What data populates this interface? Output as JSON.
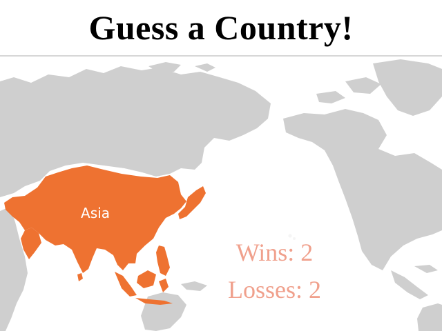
{
  "header": {
    "title": "Guess a Country!"
  },
  "map": {
    "highlighted_region": "Asia",
    "colors": {
      "land": "#cfcfcf",
      "highlight": "#ee7231",
      "highlight_label": "#ffffff",
      "ocean": "#ffffff"
    }
  },
  "score": {
    "wins_label": "Wins:",
    "wins_value": "2",
    "losses_label": "Losses:",
    "losses_value": "2",
    "text_color": "#f0a08c"
  }
}
